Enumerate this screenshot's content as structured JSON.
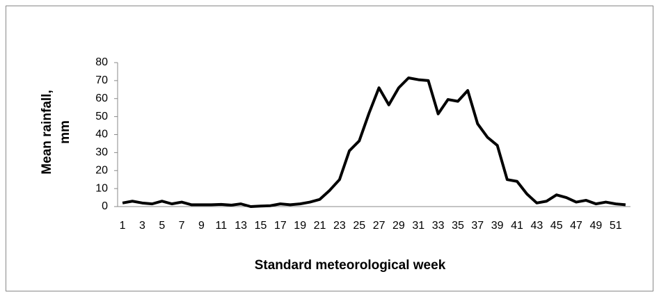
{
  "chart_data": {
    "type": "line",
    "ylabel": [
      "Mean rainfall,",
      "mm"
    ],
    "xlabel": "Standard meteorological week",
    "categories": [
      1,
      null,
      3,
      null,
      5,
      null,
      7,
      null,
      9,
      null,
      11,
      null,
      13,
      null,
      15,
      null,
      17,
      null,
      19,
      null,
      21,
      null,
      23,
      null,
      25,
      null,
      27,
      null,
      29,
      null,
      31,
      null,
      33,
      null,
      35,
      null,
      37,
      null,
      39,
      null,
      41,
      null,
      43,
      null,
      45,
      null,
      47,
      null,
      49,
      null,
      51,
      null
    ],
    "values": [
      2,
      3,
      2,
      1.5,
      3,
      1.5,
      2.5,
      1,
      1,
      1,
      1.2,
      0.8,
      1.5,
      0,
      0.3,
      0.5,
      1.5,
      1,
      1.5,
      2.5,
      4,
      9,
      15,
      31,
      36.5,
      52,
      66,
      56.5,
      66,
      71.5,
      70.5,
      70,
      51.5,
      59.5,
      58.5,
      64.5,
      46,
      38.5,
      34,
      15,
      14,
      7,
      2,
      3,
      6.5,
      5,
      2.5,
      3.5,
      1.5,
      2.5,
      1.5,
      1
    ],
    "color": "#000000",
    "ylim": [
      0,
      80
    ],
    "yticks": [
      0,
      10,
      20,
      30,
      40,
      50,
      60,
      70,
      80
    ],
    "grid": false
  }
}
